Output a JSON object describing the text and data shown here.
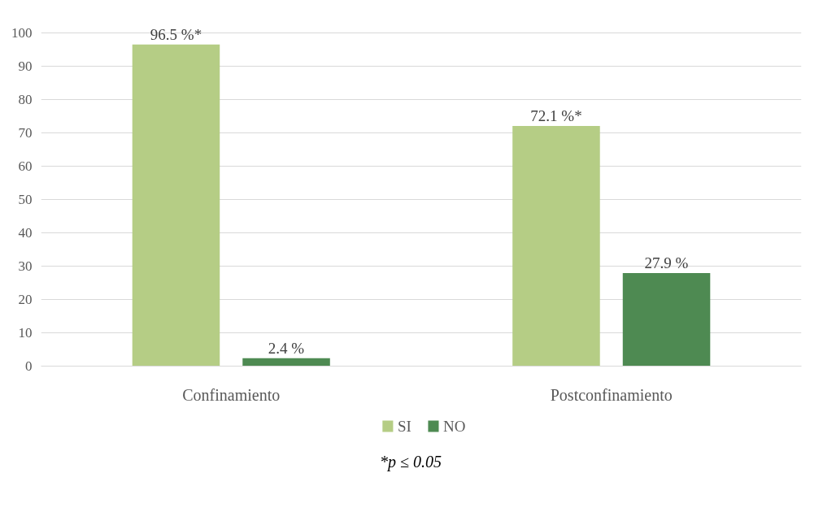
{
  "chart_data": {
    "type": "bar",
    "categories": [
      "Confinamiento",
      "Postconfinamiento"
    ],
    "series": [
      {
        "name": "SI",
        "color": "#b5cd85",
        "values": [
          96.5,
          72.1
        ],
        "value_labels": [
          "96.5 %*",
          "72.1 %*"
        ]
      },
      {
        "name": "NO",
        "color": "#4e8a52",
        "values": [
          2.4,
          27.9
        ],
        "value_labels": [
          "2.4 %",
          "27.9 %"
        ]
      }
    ],
    "ylim": [
      0,
      100
    ],
    "yticks": [
      0,
      10,
      20,
      30,
      40,
      50,
      60,
      70,
      80,
      90,
      100
    ],
    "grid": "y",
    "legend": "bottom",
    "annotations": [
      "*p ≤ 0.05"
    ]
  }
}
